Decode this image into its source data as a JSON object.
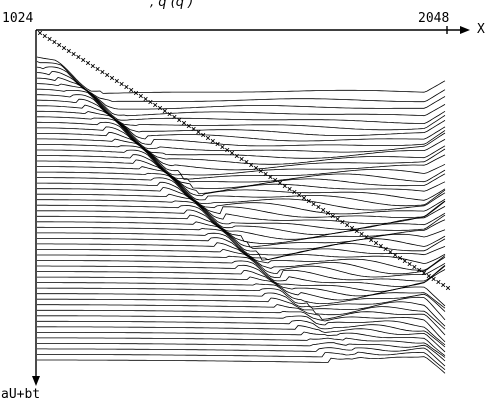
{
  "chart_data": {
    "type": "line",
    "title_fragment": ", q       (q       )",
    "xlabel": "X",
    "ylabel": "aU+bt",
    "xlim": [
      1024,
      2048
    ],
    "x_tick_labels": [
      "1024",
      "2048"
    ],
    "series_count": 56,
    "marker": "×",
    "marker_series": "diagonal line of × markers from the origin (x = 1024) toward x ≈ 2048",
    "description_of_data": "Many stacked trajectory curves: each starts flat at the left, then falls along a common diagonal band and levels off at the right edge."
  }
}
